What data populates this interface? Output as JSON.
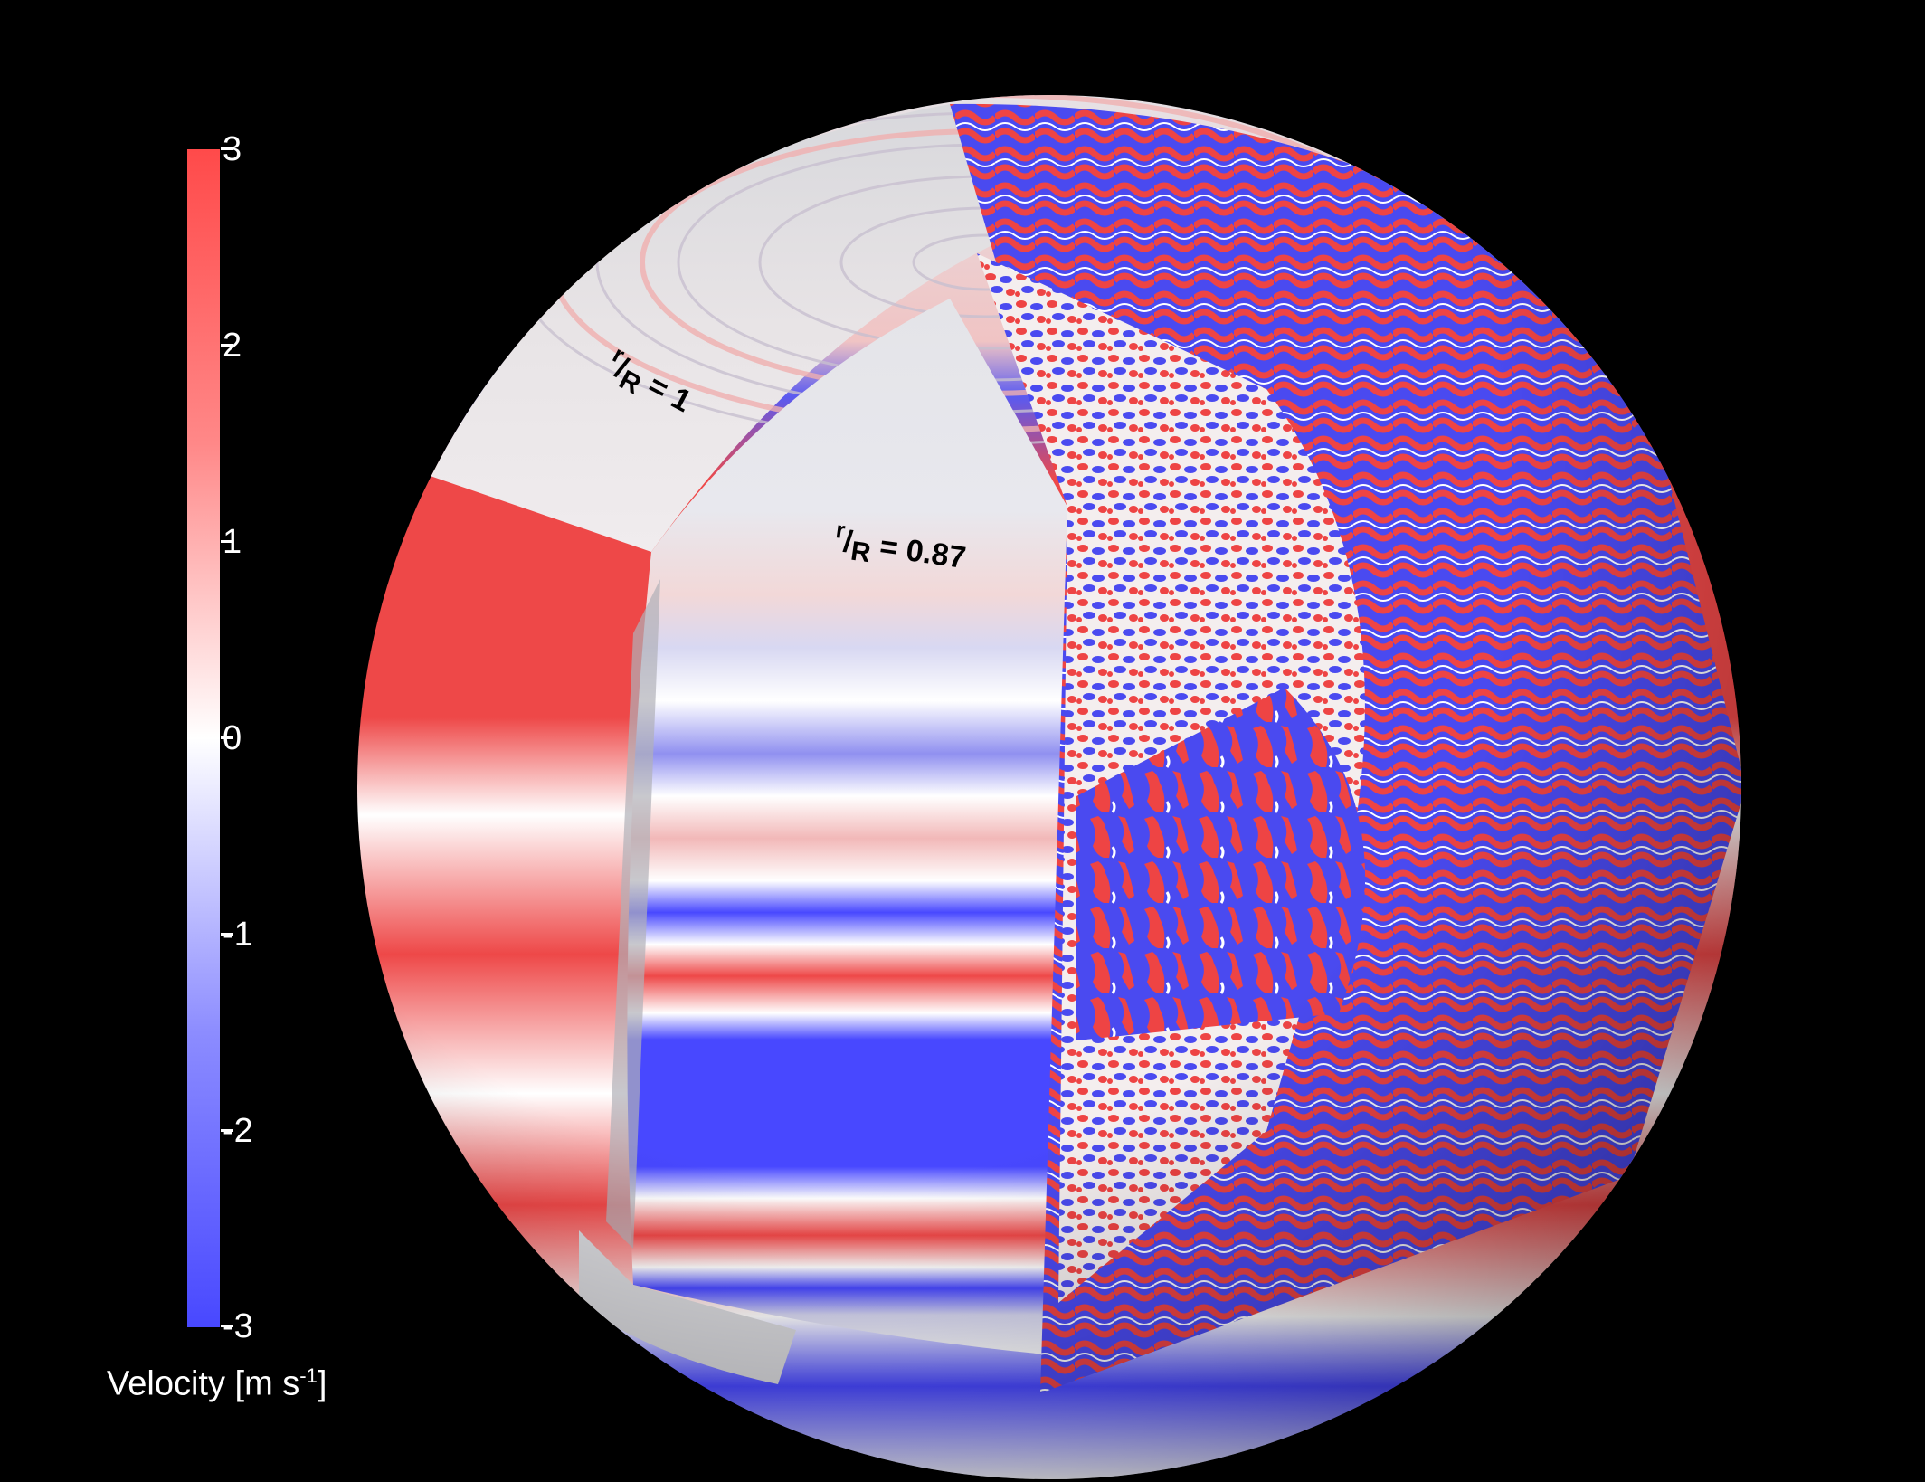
{
  "figure": {
    "colorbar": {
      "ticks": [
        "3",
        "2",
        "1",
        "0",
        "-1",
        "-2",
        "-3"
      ],
      "label_main": "Velocity [m s",
      "label_exp": "-1",
      "label_close": "]",
      "range": [
        -3,
        3
      ],
      "colors": {
        "max": "#ff4a4a",
        "mid": "#ffffff",
        "min": "#4848ff"
      }
    },
    "annotations": [
      {
        "r": "r",
        "slash": "/",
        "R": "R",
        "rest": " = 1"
      },
      {
        "r": "r",
        "slash": "/",
        "R": "R",
        "rest": " = 0.87"
      }
    ],
    "background": "#000000"
  }
}
